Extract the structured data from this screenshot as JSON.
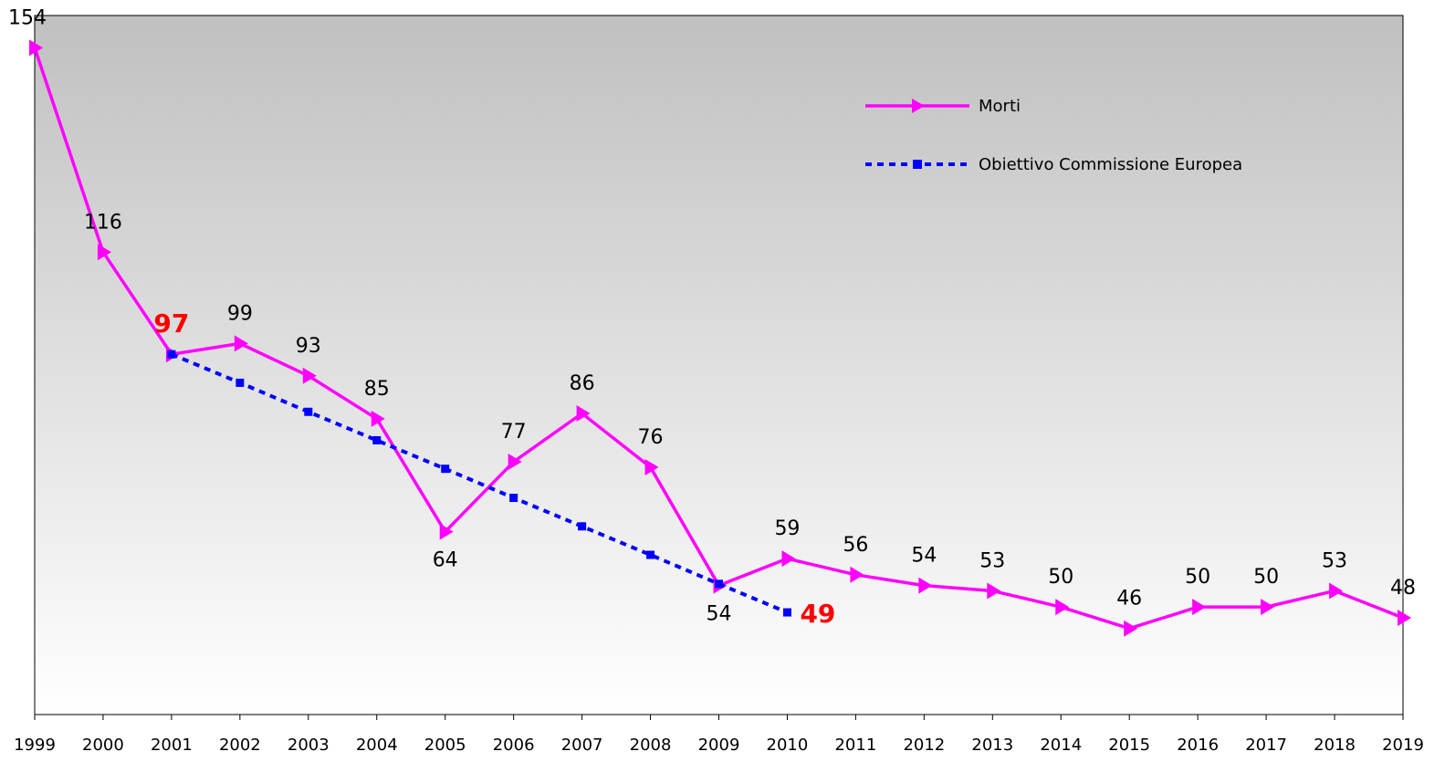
{
  "chart_data": {
    "type": "line",
    "categories": [
      "1999",
      "2000",
      "2001",
      "2002",
      "2003",
      "2004",
      "2005",
      "2006",
      "2007",
      "2008",
      "2009",
      "2010",
      "2011",
      "2012",
      "2013",
      "2014",
      "2015",
      "2016",
      "2017",
      "2018",
      "2019"
    ],
    "series": [
      {
        "name": "Morti",
        "color": "#ff00ff",
        "values": [
          154,
          116,
          97,
          99,
          93,
          85,
          64,
          77,
          86,
          76,
          54,
          59,
          56,
          54,
          53,
          50,
          46,
          50,
          50,
          53,
          48
        ]
      },
      {
        "name": "Obiettivo Commissione Europea",
        "color": "#0000ff",
        "values": [
          null,
          null,
          97,
          91.7,
          86.3,
          81,
          75.7,
          70.3,
          65,
          59.7,
          54.3,
          49,
          null,
          null,
          null,
          null,
          null,
          null,
          null,
          null,
          null
        ]
      }
    ],
    "ylim": [
      30,
      160
    ],
    "grid": false,
    "legend": "top-right"
  }
}
